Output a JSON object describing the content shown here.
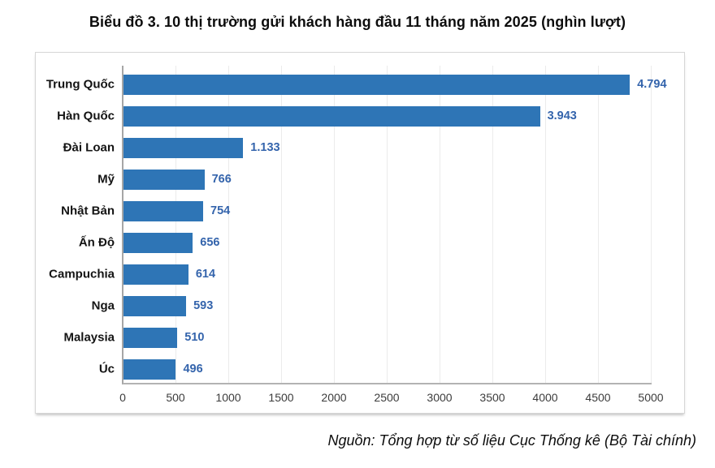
{
  "title": "Biểu đồ 3. 10 thị trường gửi khách hàng đầu 11 tháng năm 2025 (nghìn lượt)",
  "source": "Nguồn: Tổng hợp từ số liệu Cục Thống kê (Bộ Tài chính)",
  "colors": {
    "bar": "#2e75b6",
    "value_label": "#3464ac",
    "category_label": "#141414",
    "tick_label": "#3c3c3c",
    "gridline": "#ebebeb",
    "axis_line": "#a6a6a6",
    "card_border": "#d6d6d6"
  },
  "chart_data": {
    "type": "bar",
    "orientation": "horizontal",
    "title": "Biểu đồ 3. 10 thị trường gửi khách hàng đầu 11 tháng năm 2025 (nghìn lượt)",
    "xlabel": "",
    "ylabel": "",
    "unit": "nghìn lượt",
    "categories": [
      "Trung Quốc",
      "Hàn Quốc",
      "Đài Loan",
      "Mỹ",
      "Nhật Bản",
      "Ấn Độ",
      "Campuchia",
      "Nga",
      "Malaysia",
      "Úc"
    ],
    "values": [
      4794,
      3943,
      1133,
      766,
      754,
      656,
      614,
      593,
      510,
      496
    ],
    "value_labels": [
      "4.794",
      "3.943",
      "1.133",
      "766",
      "754",
      "656",
      "614",
      "593",
      "510",
      "496"
    ],
    "xlim": [
      0,
      5000
    ],
    "x_ticks": [
      0,
      500,
      1000,
      1500,
      2000,
      2500,
      3000,
      3500,
      4000,
      4500,
      5000
    ],
    "x_tick_labels": [
      "0",
      "500",
      "1000",
      "1500",
      "2000",
      "2500",
      "3000",
      "3500",
      "4000",
      "4500",
      "5000"
    ],
    "grid": "vertical-gridlines",
    "legend": "none",
    "data_labels": "outside-end"
  }
}
